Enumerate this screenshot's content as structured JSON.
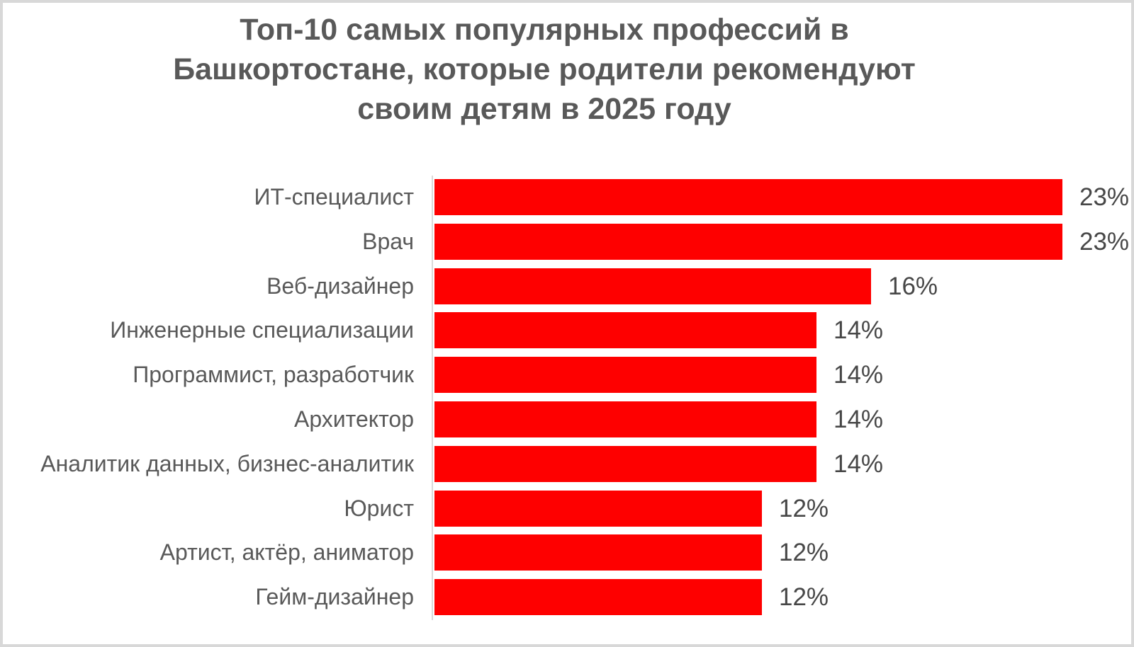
{
  "title_lines": [
    "Топ-10 самых популярных профессий в",
    "Башкортостане, которые родители рекомендуют",
    "своим детям в 2025 году"
  ],
  "chart_data": {
    "type": "bar",
    "orientation": "horizontal",
    "title": "Топ-10 самых популярных профессий в Башкортостане, которые родители рекомендуют своим детям в 2025 году",
    "categories": [
      "ИТ-специалист",
      "Врач",
      "Веб-дизайнер",
      "Инженерные специализации",
      "Программист, разработчик",
      "Архитектор",
      "Аналитик данных, бизнес-аналитик",
      "Юрист",
      "Артист, актёр, аниматор",
      "Гейм-дизайнер"
    ],
    "values": [
      23,
      23,
      16,
      14,
      14,
      14,
      14,
      12,
      12,
      12
    ],
    "value_labels": [
      "23%",
      "23%",
      "16%",
      "14%",
      "14%",
      "14%",
      "14%",
      "12%",
      "12%",
      "12%"
    ],
    "xlabel": "",
    "ylabel": "",
    "xlim": [
      0,
      23
    ],
    "grid": false,
    "legend": false,
    "bar_color": "#fe0000",
    "category_label_color": "#595959",
    "value_label_color": "#474747",
    "axis_line_color": "#d9d9d9",
    "title_color": "#595959",
    "frame_color": "#d8d8d8"
  }
}
